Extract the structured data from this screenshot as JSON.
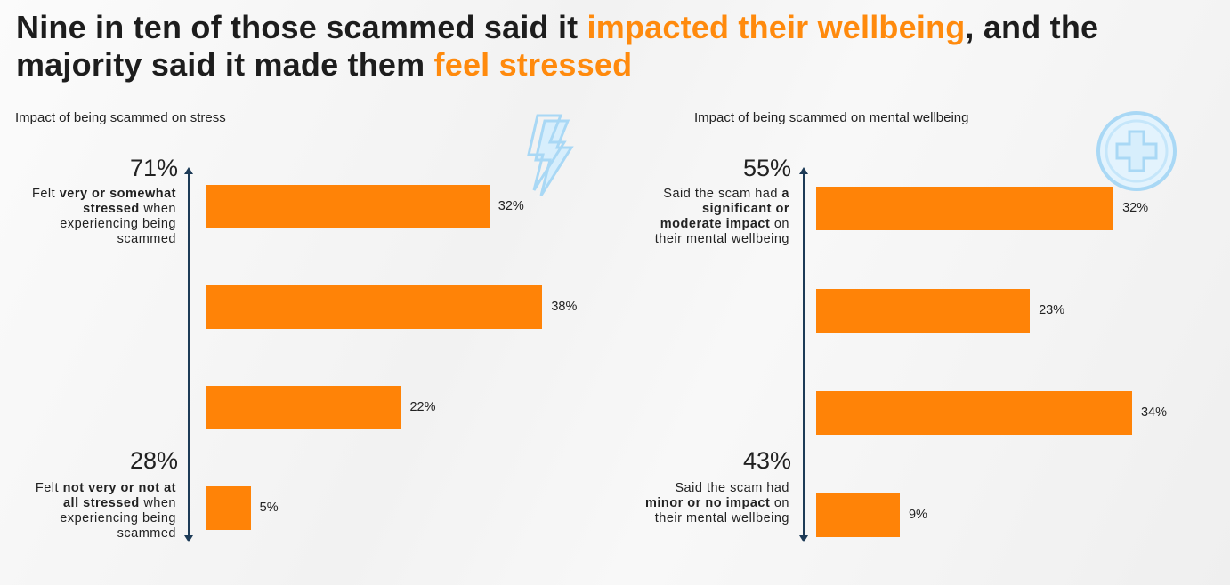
{
  "title": {
    "parts": [
      {
        "text": "Nine in ten of those scammed said it ",
        "highlight": false
      },
      {
        "text": "impacted their wellbeing",
        "highlight": true
      },
      {
        "text": ", and the majority said it made them ",
        "highlight": false
      },
      {
        "text": "feel stressed",
        "highlight": true
      }
    ]
  },
  "colors": {
    "bar": "#ff8307",
    "highlight": "#ff8a0d",
    "axis": "#1d3b57",
    "icon": "#a9d8f5"
  },
  "chart_data": [
    {
      "type": "bar",
      "orientation": "horizontal",
      "title": "Impact of being scammed on stress",
      "values": [
        32,
        38,
        22,
        5
      ],
      "labels": [
        "32%",
        "38%",
        "22%",
        "5%"
      ],
      "icon": "lightning-icon",
      "top_group": {
        "total": "71%",
        "pre": "Felt ",
        "bold": "very or somewhat stressed",
        "post": " when experiencing being scammed"
      },
      "bottom_group": {
        "total": "28%",
        "pre": "Felt ",
        "bold": "not very or not at all stressed",
        "post": " when experiencing being scammed"
      }
    },
    {
      "type": "bar",
      "orientation": "horizontal",
      "title": "Impact of being scammed on mental wellbeing",
      "values": [
        32,
        23,
        34,
        9
      ],
      "labels": [
        "32%",
        "23%",
        "34%",
        "9%"
      ],
      "icon": "medical-cross-icon",
      "top_group": {
        "total": "55%",
        "pre": "Said the scam had ",
        "bold": "a significant or moderate impact",
        "post": " on their mental wellbeing"
      },
      "bottom_group": {
        "total": "43%",
        "pre": "Said the scam had ",
        "bold": "minor or no impact",
        "post": " on their mental wellbeing"
      }
    }
  ]
}
